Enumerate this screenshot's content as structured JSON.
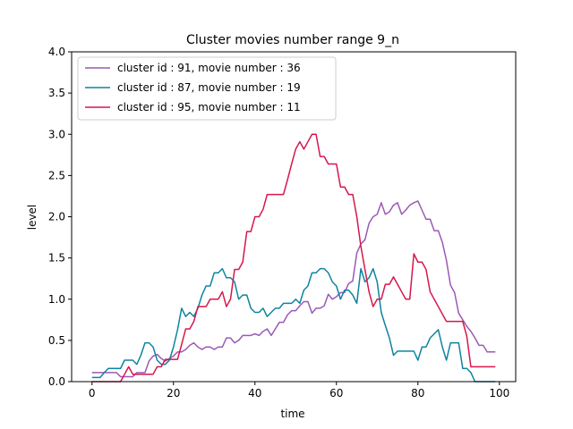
{
  "chart_data": {
    "type": "line",
    "title": "Cluster movies number range 9_n",
    "xlabel": "time",
    "ylabel": "level",
    "xlim": [
      -5,
      104
    ],
    "ylim": [
      0,
      4.0
    ],
    "xticks": [
      0,
      20,
      40,
      60,
      80,
      100
    ],
    "yticks": [
      0.0,
      0.5,
      1.0,
      1.5,
      2.0,
      2.5,
      3.0,
      3.5,
      4.0
    ],
    "xtick_labels": [
      "0",
      "20",
      "40",
      "60",
      "80",
      "100"
    ],
    "ytick_labels": [
      "0.0",
      "0.5",
      "1.0",
      "1.5",
      "2.0",
      "2.5",
      "3.0",
      "3.5",
      "4.0"
    ],
    "grid": false,
    "legend_position": "top-left",
    "series": [
      {
        "name": "cluster id : 91, movie number : 36",
        "color": "#9b59b6",
        "x": [
          0,
          5,
          6,
          7,
          8,
          9,
          10,
          11,
          12,
          13,
          14,
          15,
          16,
          17,
          18,
          19,
          20,
          21,
          22,
          23,
          24,
          25,
          26,
          27,
          28,
          29,
          30,
          31,
          32,
          33,
          34,
          35,
          36,
          37,
          38,
          39,
          40,
          41,
          42,
          43,
          44,
          45,
          46,
          47,
          48,
          49,
          50,
          51,
          52,
          53,
          54,
          55,
          56,
          57,
          58,
          59,
          60,
          61,
          62,
          63,
          64,
          65,
          66,
          67,
          68,
          69,
          70,
          71,
          72,
          73,
          74,
          75,
          76,
          77,
          78,
          79,
          80,
          81,
          82,
          83,
          84,
          85,
          86,
          87,
          88,
          89,
          90,
          91,
          92,
          93,
          94,
          95,
          96,
          97,
          98,
          99
        ],
        "values": [
          0.11,
          0.11,
          0.11,
          0.06,
          0.06,
          0.06,
          0.06,
          0.11,
          0.11,
          0.11,
          0.25,
          0.31,
          0.33,
          0.28,
          0.25,
          0.28,
          0.31,
          0.36,
          0.36,
          0.39,
          0.44,
          0.47,
          0.42,
          0.39,
          0.42,
          0.42,
          0.39,
          0.42,
          0.42,
          0.53,
          0.53,
          0.47,
          0.5,
          0.56,
          0.56,
          0.56,
          0.58,
          0.56,
          0.61,
          0.64,
          0.56,
          0.64,
          0.72,
          0.72,
          0.81,
          0.86,
          0.86,
          0.92,
          0.97,
          0.97,
          0.83,
          0.89,
          0.89,
          0.92,
          1.06,
          1.0,
          1.03,
          1.08,
          1.08,
          1.19,
          1.22,
          1.56,
          1.67,
          1.72,
          1.92,
          2.0,
          2.03,
          2.17,
          2.03,
          2.06,
          2.14,
          2.17,
          2.03,
          2.08,
          2.14,
          2.17,
          2.19,
          2.08,
          1.97,
          1.97,
          1.83,
          1.83,
          1.69,
          1.47,
          1.17,
          1.08,
          0.83,
          0.75,
          0.67,
          0.61,
          0.53,
          0.44,
          0.44,
          0.36,
          0.36,
          0.36
        ]
      },
      {
        "name": "cluster id : 87, movie number : 19",
        "color": "#0e84a0",
        "x": [
          0,
          2,
          3,
          4,
          5,
          6,
          7,
          8,
          9,
          10,
          11,
          12,
          13,
          14,
          15,
          16,
          17,
          18,
          19,
          20,
          21,
          22,
          23,
          24,
          25,
          26,
          27,
          28,
          29,
          30,
          31,
          32,
          33,
          34,
          35,
          36,
          37,
          38,
          39,
          40,
          41,
          42,
          43,
          44,
          45,
          46,
          47,
          48,
          49,
          50,
          51,
          52,
          53,
          54,
          55,
          56,
          57,
          58,
          59,
          60,
          61,
          62,
          63,
          64,
          65,
          66,
          67,
          68,
          69,
          70,
          71,
          72,
          73,
          74,
          75,
          76,
          77,
          78,
          79,
          80,
          81,
          82,
          83,
          84,
          85,
          86,
          87,
          88,
          89,
          90,
          91,
          92,
          93,
          94,
          95,
          96,
          97,
          98,
          99
        ],
        "values": [
          0.05,
          0.05,
          0.11,
          0.16,
          0.16,
          0.16,
          0.16,
          0.26,
          0.26,
          0.26,
          0.21,
          0.32,
          0.47,
          0.47,
          0.42,
          0.26,
          0.21,
          0.21,
          0.26,
          0.42,
          0.63,
          0.89,
          0.79,
          0.84,
          0.79,
          0.89,
          1.05,
          1.16,
          1.16,
          1.32,
          1.32,
          1.37,
          1.26,
          1.26,
          1.21,
          1.0,
          1.05,
          1.05,
          0.89,
          0.84,
          0.84,
          0.89,
          0.79,
          0.84,
          0.89,
          0.89,
          0.95,
          0.95,
          0.95,
          1.0,
          0.95,
          1.11,
          1.16,
          1.32,
          1.32,
          1.37,
          1.37,
          1.32,
          1.21,
          1.16,
          1.0,
          1.11,
          1.11,
          1.05,
          0.95,
          1.37,
          1.21,
          1.26,
          1.37,
          1.21,
          0.84,
          0.68,
          0.53,
          0.32,
          0.37,
          0.37,
          0.37,
          0.37,
          0.37,
          0.26,
          0.42,
          0.42,
          0.53,
          0.58,
          0.63,
          0.42,
          0.26,
          0.47,
          0.47,
          0.47,
          0.16,
          0.16,
          0.11,
          0.0,
          0.0,
          0.0,
          0.0,
          0.0,
          0.0
        ],
        "legend_order": 2
      },
      {
        "name": "cluster id : 95, movie number : 11",
        "color": "#d6174c",
        "x": [
          0,
          7,
          8,
          9,
          10,
          11,
          12,
          13,
          14,
          15,
          16,
          17,
          18,
          19,
          20,
          21,
          22,
          23,
          24,
          25,
          26,
          27,
          28,
          29,
          30,
          31,
          32,
          33,
          34,
          35,
          36,
          37,
          38,
          39,
          40,
          41,
          42,
          43,
          44,
          45,
          46,
          47,
          48,
          49,
          50,
          51,
          52,
          53,
          54,
          55,
          56,
          57,
          58,
          59,
          60,
          61,
          62,
          63,
          64,
          65,
          66,
          67,
          68,
          69,
          70,
          71,
          72,
          73,
          74,
          75,
          76,
          77,
          78,
          79,
          80,
          81,
          82,
          83,
          84,
          85,
          86,
          87,
          88,
          89,
          90,
          91,
          92,
          93,
          94,
          95,
          96,
          97,
          98,
          99
        ],
        "values": [
          0.0,
          0.0,
          0.09,
          0.18,
          0.09,
          0.09,
          0.09,
          0.09,
          0.09,
          0.09,
          0.18,
          0.18,
          0.27,
          0.27,
          0.27,
          0.27,
          0.45,
          0.64,
          0.64,
          0.73,
          0.91,
          0.91,
          0.91,
          1.0,
          1.0,
          1.0,
          1.09,
          0.91,
          1.0,
          1.36,
          1.36,
          1.45,
          1.82,
          1.82,
          2.0,
          2.0,
          2.09,
          2.27,
          2.27,
          2.27,
          2.27,
          2.27,
          2.45,
          2.64,
          2.82,
          2.91,
          2.82,
          2.91,
          3.0,
          3.0,
          2.73,
          2.73,
          2.64,
          2.64,
          2.64,
          2.36,
          2.36,
          2.27,
          2.27,
          2.0,
          1.64,
          1.36,
          1.09,
          0.91,
          1.0,
          1.0,
          1.18,
          1.18,
          1.27,
          1.18,
          1.09,
          1.0,
          1.0,
          1.55,
          1.45,
          1.45,
          1.36,
          1.09,
          1.0,
          0.91,
          0.82,
          0.73,
          0.73,
          0.73,
          0.73,
          0.73,
          0.55,
          0.18,
          0.18,
          0.18,
          0.18,
          0.18,
          0.18,
          0.18
        ]
      }
    ]
  }
}
